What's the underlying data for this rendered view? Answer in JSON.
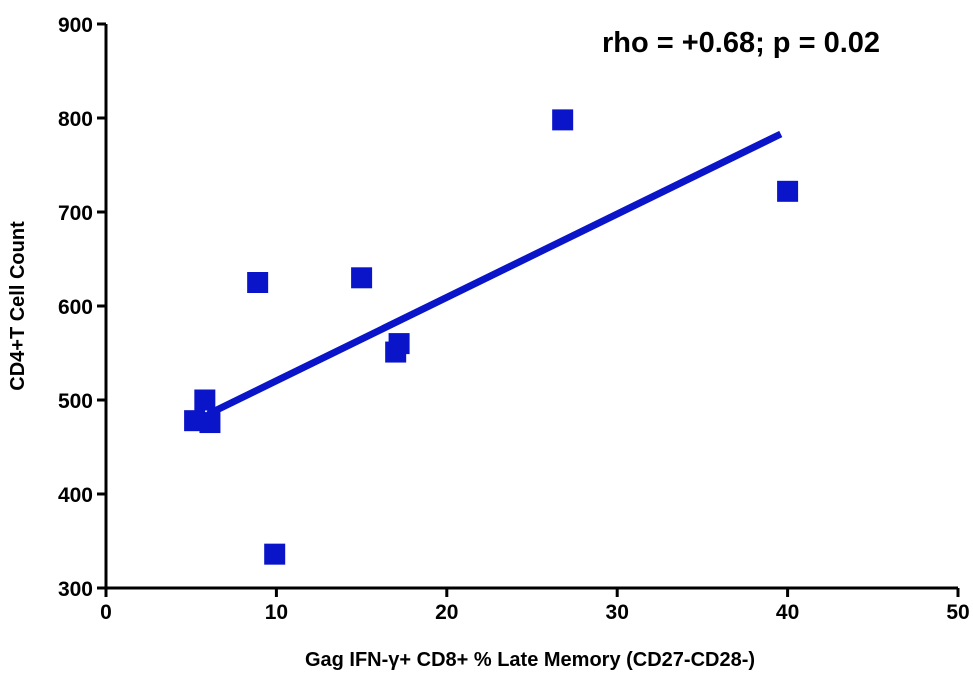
{
  "chart_data": {
    "type": "scatter",
    "title": "",
    "xlabel": "Gag IFN-γ+ CD8+ % Late Memory (CD27-CD28-)",
    "ylabel": "CD4+T Cell Count",
    "xlim": [
      0,
      50
    ],
    "ylim": [
      300,
      900
    ],
    "xticks": [
      "0",
      "10",
      "20",
      "30",
      "40",
      "50"
    ],
    "yticks": [
      "300",
      "400",
      "500",
      "600",
      "700",
      "800",
      "900"
    ],
    "grid": false,
    "annotation": "rho = +0.68; p = 0.02",
    "series": [
      {
        "points": [
          {
            "x": 5.2,
            "y": 478
          },
          {
            "x": 5.8,
            "y": 500
          },
          {
            "x": 6.1,
            "y": 476
          },
          {
            "x": 8.9,
            "y": 625
          },
          {
            "x": 9.9,
            "y": 336
          },
          {
            "x": 15.0,
            "y": 630
          },
          {
            "x": 17.0,
            "y": 551
          },
          {
            "x": 17.2,
            "y": 560
          },
          {
            "x": 26.8,
            "y": 798
          },
          {
            "x": 40.0,
            "y": 722
          }
        ]
      }
    ],
    "regression_line": {
      "x1": 6.0,
      "y1": 485,
      "x2": 39.6,
      "y2": 783
    },
    "colors": {
      "marker": "#0a14c8",
      "line": "#0a14c8",
      "axis": "#000000"
    }
  }
}
